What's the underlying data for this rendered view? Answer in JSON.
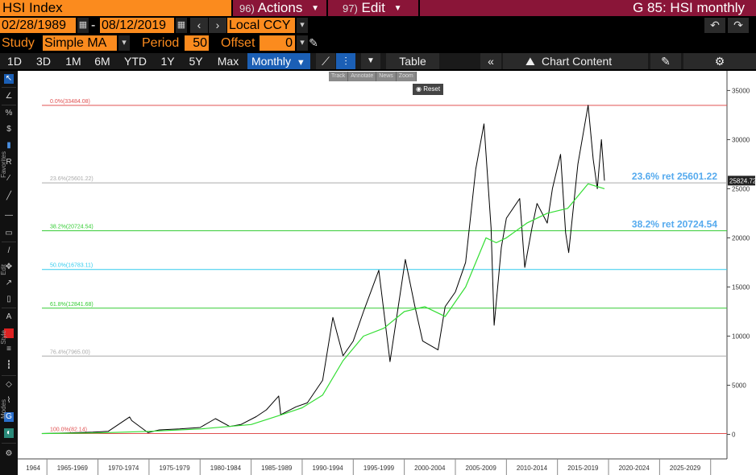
{
  "header": {
    "security": "HSI Index",
    "actions": {
      "num": "96)",
      "label": "Actions"
    },
    "edit": {
      "num": "97)",
      "label": "Edit"
    },
    "chart_title": "G 85: HSI monthly"
  },
  "date_range": {
    "start": "02/28/1989",
    "separator": "-",
    "end": "08/12/2019"
  },
  "currency": "Local CCY",
  "study": {
    "label": "Study",
    "value": "Simple MA",
    "period_label": "Period",
    "period_value": "50",
    "offset_label": "Offset",
    "offset_value": "0"
  },
  "range_buttons": [
    "1D",
    "3D",
    "1M",
    "6M",
    "YTD",
    "1Y",
    "5Y",
    "Max"
  ],
  "frequency": "Monthly",
  "toolbar": {
    "table_label": "Table",
    "chart_content_label": "Chart Content"
  },
  "popup": {
    "items": [
      "Track",
      "Annotate",
      "News",
      "Zoom"
    ],
    "reset": "Reset"
  },
  "side_labels": {
    "favorites": "Favorites",
    "edit": "Edit",
    "style": "Style",
    "modes": "Modes"
  },
  "colors": {
    "accent_orange": "#fb8b1e",
    "menu_red": "#8a1538",
    "selected_blue": "#1b5fb5",
    "price_line": "#000000",
    "ma_line": "#33dd33"
  },
  "chart_data": {
    "type": "line",
    "title": "",
    "ylim": [
      -2500,
      37000
    ],
    "y_ticks": [
      "0",
      "5000",
      "10000",
      "15000",
      "20000",
      "25000",
      "30000",
      "35000"
    ],
    "y_tick_values": [
      0,
      5000,
      10000,
      15000,
      20000,
      25000,
      30000,
      35000
    ],
    "x_labels": [
      "1964",
      "1965-1969",
      "1970-1974",
      "1975-1979",
      "1980-1984",
      "1985-1989",
      "1990-1994",
      "1995-1999",
      "2000-2004",
      "2005-2009",
      "2010-2014",
      "2015-2019",
      "2020-2024",
      "2025-2029"
    ],
    "last_price_label": "25824.72",
    "last_price": 25824.72,
    "fib_levels": [
      {
        "label": "0.0%(33484.08)",
        "value": 33484.08,
        "color": "#e05050"
      },
      {
        "label": "23.6%(25601.22)",
        "value": 25601.22,
        "color": "#aaaaaa",
        "ret_label": "23.6% ret 25601.22"
      },
      {
        "label": "38.2%(20724.54)",
        "value": 20724.54,
        "color": "#33cc33",
        "ret_label": "38.2% ret 20724.54"
      },
      {
        "label": "50.0%(16783.11)",
        "value": 16783.11,
        "color": "#33ccee"
      },
      {
        "label": "61.8%(12841.68)",
        "value": 12841.68,
        "color": "#33cc33"
      },
      {
        "label": "76.4%(7965.00)",
        "value": 7965.0,
        "color": "#aaaaaa"
      },
      {
        "label": "100.0%(82.14)",
        "value": 82.14,
        "color": "#e05050"
      }
    ],
    "series": [
      {
        "x": [
          1964.5,
          1967,
          1969.5,
          1971,
          1973.1,
          1973.3,
          1974.9,
          1976,
          1978,
          1980,
          1981.5,
          1982.9,
          1984,
          1985.5,
          1986.5,
          1987.7,
          1987.9,
          1989.4,
          1990.5,
          1992,
          1993,
          1994,
          1995,
          1996,
          1997.5,
          1998.6,
          2000.1,
          2001,
          2001.8,
          2003.3,
          2004,
          2005,
          2006,
          2007,
          2007.8,
          2008.5,
          2008.8,
          2009.5,
          2010,
          2011.3,
          2011.8,
          2012.5,
          2013,
          2014,
          2014.5,
          2015.3,
          2015.8,
          2016.1,
          2017,
          2018,
          2018.5,
          2018.9,
          2019.3,
          2019.6
        ],
        "y": [
          82,
          150,
          220,
          300,
          1770,
          1400,
          170,
          450,
          550,
          700,
          1600,
          800,
          1000,
          1800,
          2500,
          3900,
          2000,
          2800,
          3200,
          5500,
          11900,
          8000,
          9500,
          12500,
          16700,
          7400,
          17800,
          13200,
          9500,
          8600,
          13000,
          14500,
          17500,
          27000,
          31600,
          21000,
          11100,
          19000,
          22000,
          24000,
          17000,
          21000,
          23500,
          21500,
          25000,
          28500,
          20500,
          18500,
          27500,
          33500,
          28000,
          25000,
          30000,
          25825
        ]
      },
      {
        "x": [
          1964.5,
          1970,
          1975,
          1980,
          1985,
          1988,
          1990,
          1992,
          1994,
          1996,
          1998,
          2000,
          2002,
          2004,
          2006,
          2008,
          2009,
          2010,
          2012,
          2014,
          2016,
          2018,
          2019.6
        ],
        "y": [
          82,
          150,
          300,
          550,
          1000,
          2000,
          2700,
          4000,
          7500,
          10000,
          10800,
          12500,
          13000,
          12000,
          15000,
          20000,
          19500,
          20000,
          21500,
          22500,
          23000,
          25500,
          25000
        ]
      }
    ]
  }
}
